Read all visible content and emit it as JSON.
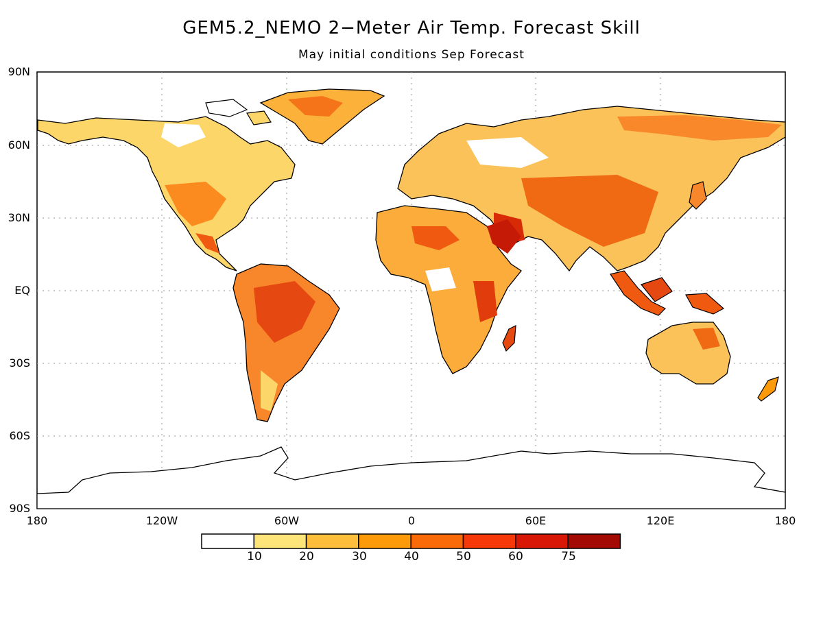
{
  "title": "GEM5.2_NEMO 2−Meter Air Temp. Forecast Skill",
  "subtitle": "May initial conditions   Sep Forecast",
  "lat_ticks": [
    "90N",
    "60N",
    "30N",
    "EQ",
    "30S",
    "60S",
    "90S"
  ],
  "lon_ticks": [
    "180",
    "120W",
    "60W",
    "0",
    "60E",
    "120E",
    "180"
  ],
  "legend": {
    "labels": [
      "10",
      "20",
      "30",
      "40",
      "50",
      "60",
      "75"
    ],
    "colors": [
      "#ffffff",
      "#fee57a",
      "#fdbe3c",
      "#fc9a0a",
      "#fb6a08",
      "#f7390a",
      "#d81706",
      "#a20a03"
    ]
  },
  "colors": {
    "land_outline": "#000000",
    "grid": "#999999"
  }
}
